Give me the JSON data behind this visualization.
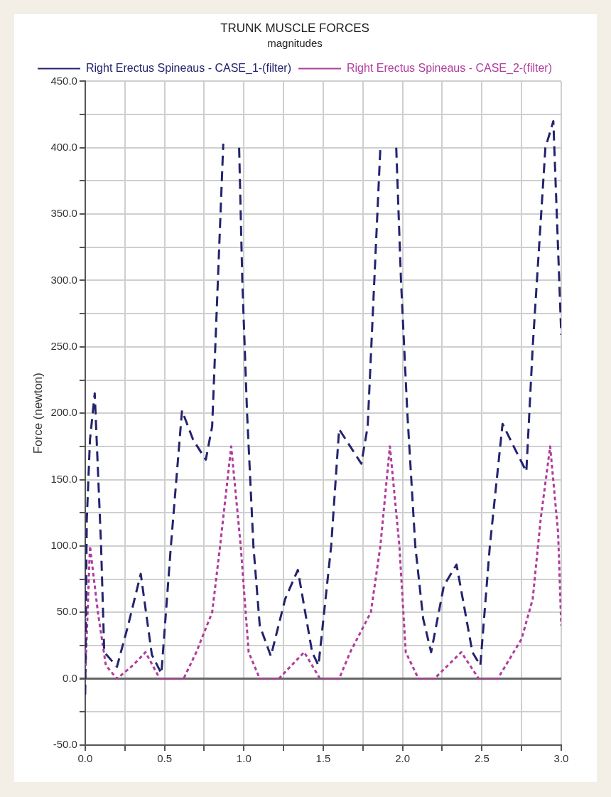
{
  "chart_data": {
    "type": "line",
    "title": "TRUNK MUSCLE FORCES",
    "subtitle": "magnitudes",
    "ylabel": "Force (newton)",
    "xlim": [
      0,
      3
    ],
    "ylim": [
      -50,
      450
    ],
    "xticks": [
      {
        "value": 0,
        "label": "0.0"
      },
      {
        "value": 0.25,
        "label": null
      },
      {
        "value": 0.5,
        "label": "0.5"
      },
      {
        "value": 0.75,
        "label": null
      },
      {
        "value": 1,
        "label": "1.0"
      },
      {
        "value": 1.25,
        "label": null
      },
      {
        "value": 1.5,
        "label": "1.5"
      },
      {
        "value": 1.75,
        "label": null
      },
      {
        "value": 2,
        "label": "2.0"
      },
      {
        "value": 2.25,
        "label": null
      },
      {
        "value": 2.5,
        "label": "2.5"
      },
      {
        "value": 2.75,
        "label": null
      },
      {
        "value": 3,
        "label": "3.0"
      }
    ],
    "yticks": [
      {
        "value": -50,
        "label": "-50.0"
      },
      {
        "value": -25,
        "label": null
      },
      {
        "value": 0,
        "label": "0.0"
      },
      {
        "value": 25,
        "label": null
      },
      {
        "value": 50,
        "label": "50.0"
      },
      {
        "value": 75,
        "label": null
      },
      {
        "value": 100,
        "label": "100.0"
      },
      {
        "value": 125,
        "label": null
      },
      {
        "value": 150,
        "label": "150.0"
      },
      {
        "value": 175,
        "label": null
      },
      {
        "value": 200,
        "label": "200.0"
      },
      {
        "value": 225,
        "label": null
      },
      {
        "value": 250,
        "label": "250.0"
      },
      {
        "value": 275,
        "label": null
      },
      {
        "value": 300,
        "label": "300.0"
      },
      {
        "value": 325,
        "label": null
      },
      {
        "value": 350,
        "label": "350.0"
      },
      {
        "value": 375,
        "label": null
      },
      {
        "value": 400,
        "label": "400.0"
      },
      {
        "value": 425,
        "label": null
      },
      {
        "value": 450,
        "label": "450.0"
      }
    ],
    "grid": true,
    "legend": "top",
    "marker": "none",
    "series": [
      {
        "name": "Right Erectus Spineaus - CASE_1-(filter)",
        "color": "#23236e",
        "line_style": "dashed",
        "x": [
          0,
          0.01,
          0.03,
          0.06,
          0.1,
          0.12,
          0.2,
          0.27,
          0.35,
          0.42,
          0.48,
          0.54,
          0.61,
          0.68,
          0.76,
          0.8,
          0.87,
          0.92,
          0.97,
          0.99,
          1.02,
          1.06,
          1.1,
          1.17,
          1.26,
          1.34,
          1.43,
          1.47,
          1.55,
          1.6,
          1.67,
          1.74,
          1.78,
          1.86,
          1.91,
          1.96,
          1.99,
          2.03,
          2.08,
          2.13,
          2.18,
          2.26,
          2.34,
          2.44,
          2.49,
          2.55,
          2.63,
          2.7,
          2.78,
          2.82,
          2.9,
          2.95,
          3
        ],
        "values": [
          -12,
          120,
          180,
          215,
          100,
          20,
          9,
          40,
          79,
          18,
          4,
          100,
          202,
          180,
          165,
          190,
          403,
          null,
          400,
          300,
          200,
          100,
          40,
          17,
          60,
          82,
          20,
          10,
          100,
          188,
          175,
          162,
          190,
          400,
          null,
          400,
          300,
          200,
          100,
          45,
          20,
          70,
          86,
          20,
          10,
          100,
          192,
          175,
          156,
          250,
          400,
          420,
          259
        ]
      },
      {
        "name": "Right Erectus Spineaus - CASE_2-(filter)",
        "color": "#b03c9c",
        "line_style": "dotted",
        "x": [
          0,
          0.03,
          0.08,
          0.13,
          0.2,
          0.3,
          0.38,
          0.47,
          0.62,
          0.7,
          0.8,
          0.85,
          0.92,
          0.98,
          1.03,
          1.1,
          1.22,
          1.38,
          1.48,
          1.6,
          1.67,
          1.8,
          1.86,
          1.92,
          1.98,
          2.02,
          2.1,
          2.2,
          2.37,
          2.48,
          2.6,
          2.75,
          2.82,
          2.87,
          2.93,
          2.98,
          3
        ],
        "values": [
          0,
          100,
          50,
          10,
          0,
          10,
          20,
          0,
          0,
          20,
          50,
          100,
          175,
          100,
          20,
          0,
          0,
          20,
          0,
          0,
          20,
          50,
          100,
          175,
          100,
          20,
          0,
          0,
          20,
          0,
          0,
          30,
          60,
          120,
          175,
          110,
          40
        ]
      }
    ]
  }
}
